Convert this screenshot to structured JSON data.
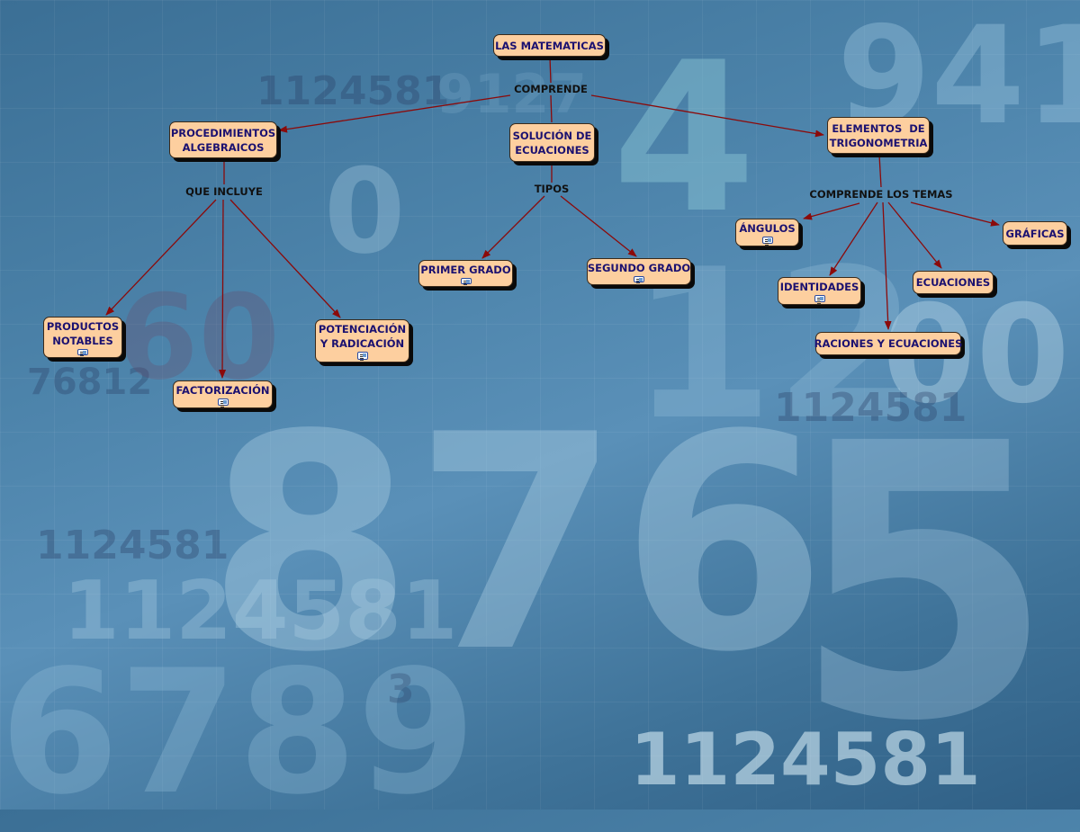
{
  "background_numbers": [
    "1124581",
    "9127",
    "4",
    "941",
    "876",
    "5",
    "12",
    "00",
    "76812",
    "1124581",
    "1124581",
    "6789",
    "1124581",
    "1124581",
    "3",
    "60",
    "0"
  ],
  "colors": {
    "node_fill": "#fdcf9f",
    "node_text": "#1b1170",
    "link": "#8b0a0a",
    "background": "#4d84ab"
  },
  "nodes": [
    {
      "id": "matematicas",
      "label": "LAS MATEMATICAS",
      "doc_icon": false
    },
    {
      "id": "procedimientos",
      "label": "PROCEDIMIENTOS\nALGEBRAICOS",
      "doc_icon": false
    },
    {
      "id": "solucion",
      "label": "SOLUCIÓN DE\nECUACIONES",
      "doc_icon": false
    },
    {
      "id": "trigonometria",
      "label": "ELEMENTOS  DE\nTRIGONOMETRIA",
      "doc_icon": false
    },
    {
      "id": "primer",
      "label": "PRIMER GRADO",
      "doc_icon": true
    },
    {
      "id": "segundo",
      "label": "SEGUNDO GRADO",
      "doc_icon": true
    },
    {
      "id": "productos",
      "label": "PRODUCTOS\nNOTABLES",
      "doc_icon": true
    },
    {
      "id": "factorizacion",
      "label": "FACTORIZACIÓN",
      "doc_icon": true
    },
    {
      "id": "potenciacion",
      "label": "POTENCIACIÓN\nY RADICACIÓN",
      "doc_icon": true
    },
    {
      "id": "angulos",
      "label": "ÁNGULOS",
      "doc_icon": true
    },
    {
      "id": "graficas",
      "label": "GRÁFICAS",
      "doc_icon": false
    },
    {
      "id": "identidades",
      "label": "IDENTIDADES",
      "doc_icon": true
    },
    {
      "id": "ecuaciones",
      "label": "ECUACIONES",
      "doc_icon": false
    },
    {
      "id": "raciones",
      "label": "RACIONES Y ECUACIONES",
      "doc_icon": false
    }
  ],
  "link_labels": {
    "comprende": "COMPRENDE",
    "que_incluye": "QUE INCLUYE",
    "tipos": "TIPOS",
    "comprende_temas": "COMPRENDE LOS TEMAS"
  }
}
